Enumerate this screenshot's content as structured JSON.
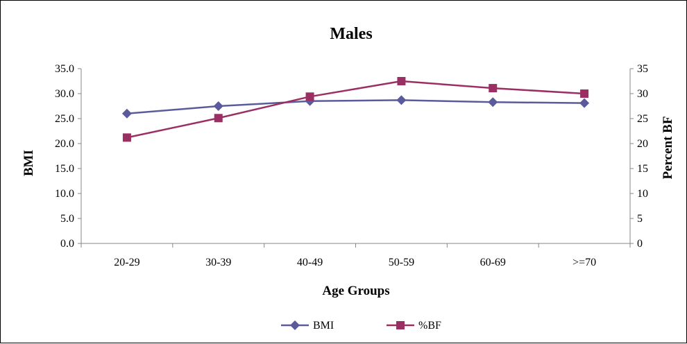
{
  "chart_data": {
    "type": "line",
    "title": "Males",
    "xlabel": "Age Groups",
    "ylabel": "BMI",
    "y2label": "Percent BF",
    "categories": [
      "20-29",
      "30-39",
      "40-49",
      "50-59",
      "60-69",
      ">=70"
    ],
    "ylim": [
      0,
      35
    ],
    "y2lim": [
      0,
      35
    ],
    "y_ticks": [
      "0.0",
      "5.0",
      "10.0",
      "15.0",
      "20.0",
      "25.0",
      "30.0",
      "35.0"
    ],
    "y2_ticks": [
      "0",
      "5",
      "10",
      "15",
      "20",
      "25",
      "30",
      "35"
    ],
    "grid": false,
    "legend_position": "bottom",
    "series": [
      {
        "name": "BMI",
        "axis": "left",
        "marker": "diamond",
        "color": "#5b5b9b",
        "values": [
          26.0,
          27.5,
          28.5,
          28.7,
          28.3,
          28.1
        ]
      },
      {
        "name": "%BF",
        "axis": "right",
        "marker": "square",
        "color": "#9b2f64",
        "values": [
          21.2,
          25.1,
          29.4,
          32.5,
          31.1,
          30.0
        ]
      }
    ]
  }
}
